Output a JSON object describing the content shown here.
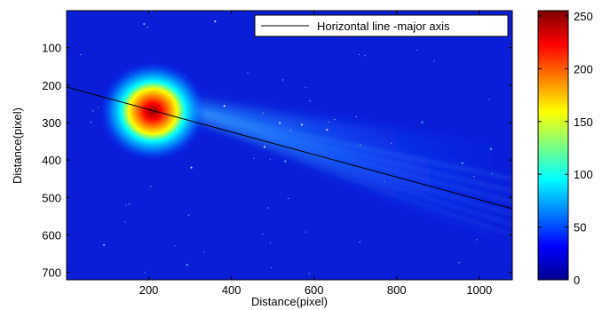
{
  "chart_data": {
    "type": "heatmap",
    "title": "",
    "xlabel": "Distance(pixel)",
    "ylabel": "Distance(pixel)",
    "xlim": [
      1,
      1080
    ],
    "ylim": [
      720,
      1
    ],
    "x_ticks": [
      200,
      400,
      600,
      800,
      1000
    ],
    "y_ticks": [
      100,
      200,
      300,
      400,
      500,
      600,
      700
    ],
    "colormap": "jet",
    "colorbar": {
      "range": [
        0,
        255
      ],
      "ticks": [
        0,
        50,
        100,
        150,
        200,
        250
      ]
    },
    "background_value": 10,
    "peak": {
      "x": 210,
      "y": 270,
      "value": 255
    },
    "tail_direction_end": {
      "x": 1080,
      "y": 530
    },
    "series": [
      {
        "name": "Horizontal line -major axis",
        "type": "line",
        "x": [
          1,
          1080
        ],
        "y": [
          205,
          530
        ],
        "color": "#000000"
      }
    ],
    "legend": {
      "position": "top-right"
    }
  }
}
